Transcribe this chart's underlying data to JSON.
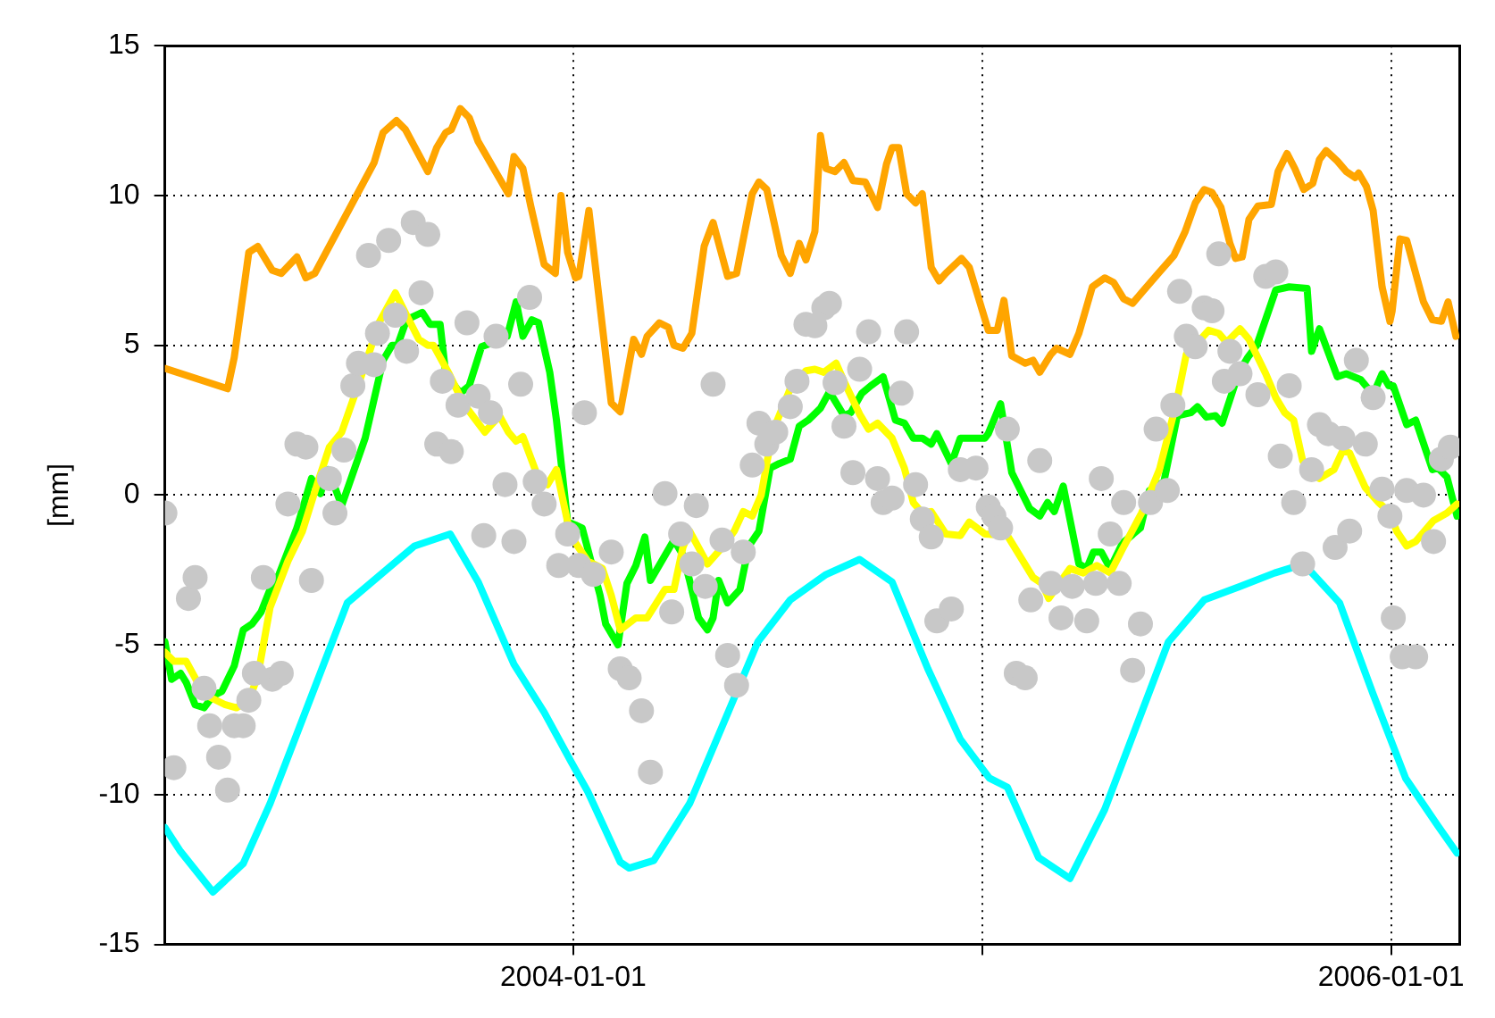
{
  "chart_data": {
    "type": "line",
    "ylabel": "[mm]",
    "xlim": [
      "2003-01-01",
      "2006-03-03"
    ],
    "ylim": [
      -15,
      15
    ],
    "xticks": [
      {
        "value": "2004-01-01",
        "label": "2004-01-01"
      },
      {
        "value": "2005-01-01",
        "label": null
      },
      {
        "value": "2006-01-01",
        "label": "2006-01-01"
      }
    ],
    "yticks": [
      -15,
      -10,
      -5,
      0,
      5,
      10,
      15
    ],
    "grid": true,
    "legend": false,
    "series": [
      {
        "type": "scatter",
        "marker": "circle",
        "color": "#c8c8c8",
        "x": [
          "2003-01-01",
          "2003-01-09",
          "2003-01-22",
          "2003-01-28",
          "2003-02-05",
          "2003-02-10",
          "2003-02-18",
          "2003-02-26",
          "2003-03-04",
          "2003-03-12",
          "2003-03-17",
          "2003-03-22",
          "2003-03-30",
          "2003-04-07",
          "2003-04-15",
          "2003-04-21",
          "2003-04-29",
          "2003-05-07",
          "2003-05-12",
          "2003-05-28",
          "2003-06-02",
          "2003-06-10",
          "2003-06-18",
          "2003-06-23",
          "2003-07-02",
          "2003-07-07",
          "2003-07-10",
          "2003-07-20",
          "2003-07-26",
          "2003-08-05",
          "2003-08-11",
          "2003-08-18",
          "2003-08-24",
          "2003-09-01",
          "2003-09-06",
          "2003-09-14",
          "2003-09-20",
          "2003-09-28",
          "2003-10-08",
          "2003-10-13",
          "2003-10-19",
          "2003-10-24",
          "2003-11-01",
          "2003-11-09",
          "2003-11-15",
          "2003-11-23",
          "2003-11-28",
          "2003-12-06",
          "2003-12-19",
          "2003-12-27",
          "2004-01-06",
          "2004-01-11",
          "2004-01-19",
          "2004-02-04",
          "2004-02-12",
          "2004-02-20",
          "2004-03-02",
          "2004-03-10",
          "2004-03-23",
          "2004-03-29",
          "2004-04-06",
          "2004-04-16",
          "2004-04-20",
          "2004-04-28",
          "2004-05-05",
          "2004-05-13",
          "2004-05-18",
          "2004-05-26",
          "2004-06-01",
          "2004-06-09",
          "2004-06-15",
          "2004-06-22",
          "2004-06-30",
          "2004-07-13",
          "2004-07-19",
          "2004-07-27",
          "2004-08-04",
          "2004-08-12",
          "2004-08-17",
          "2004-08-22",
          "2004-08-30",
          "2004-09-07",
          "2004-09-13",
          "2004-09-21",
          "2004-09-29",
          "2004-10-04",
          "2004-10-12",
          "2004-10-20",
          "2004-10-25",
          "2004-11-02",
          "2004-11-08",
          "2004-11-16",
          "2004-11-21",
          "2004-12-04",
          "2004-12-12",
          "2004-12-26",
          "2005-01-06",
          "2005-01-11",
          "2005-01-17",
          "2005-01-23",
          "2005-01-31",
          "2005-02-08",
          "2005-02-13",
          "2005-02-21",
          "2005-03-03",
          "2005-03-12",
          "2005-03-22",
          "2005-04-04",
          "2005-04-12",
          "2005-04-17",
          "2005-04-25",
          "2005-05-03",
          "2005-05-07",
          "2005-05-15",
          "2005-05-22",
          "2005-05-31",
          "2005-06-05",
          "2005-06-15",
          "2005-06-20",
          "2005-06-26",
          "2005-07-02",
          "2005-07-10",
          "2005-07-18",
          "2005-07-25",
          "2005-07-31",
          "2005-08-05",
          "2005-08-10",
          "2005-08-19",
          "2005-09-04",
          "2005-09-11",
          "2005-09-20",
          "2005-09-24",
          "2005-10-02",
          "2005-10-06",
          "2005-10-14",
          "2005-10-22",
          "2005-10-29",
          "2005-11-06",
          "2005-11-12",
          "2005-11-19",
          "2005-11-25",
          "2005-12-01",
          "2005-12-09",
          "2005-12-16",
          "2005-12-24",
          "2005-12-31",
          "2006-01-03",
          "2006-01-11",
          "2006-01-15",
          "2006-01-23",
          "2006-01-30",
          "2006-02-08",
          "2006-02-15",
          "2006-02-23"
        ],
        "values": [
          -0.6,
          -9.1,
          -3.45,
          -2.75,
          -6.45,
          -7.7,
          -8.75,
          -9.85,
          -7.7,
          -7.7,
          -6.85,
          -5.95,
          -2.75,
          -6.15,
          -5.95,
          -0.3,
          1.7,
          1.6,
          -2.85,
          0.55,
          -0.6,
          1.5,
          3.65,
          4.4,
          8.0,
          4.35,
          5.4,
          8.5,
          6.0,
          4.8,
          9.1,
          6.75,
          8.7,
          1.7,
          3.8,
          1.45,
          3.0,
          5.75,
          3.3,
          -1.35,
          2.75,
          5.3,
          0.35,
          -1.55,
          3.7,
          6.6,
          0.45,
          -0.3,
          -2.35,
          -1.3,
          -2.35,
          2.75,
          -2.65,
          -1.9,
          -5.8,
          -6.1,
          -7.2,
          -9.25,
          0.05,
          -3.9,
          -1.3,
          -2.3,
          -0.35,
          -3.05,
          3.7,
          -1.5,
          -5.35,
          -6.35,
          -1.9,
          1.0,
          2.4,
          1.7,
          2.1,
          2.95,
          3.8,
          5.7,
          5.65,
          6.25,
          6.4,
          3.75,
          2.3,
          0.75,
          4.2,
          5.45,
          0.55,
          -0.25,
          -0.1,
          3.4,
          5.45,
          0.35,
          -0.8,
          -1.4,
          -4.2,
          -3.8,
          0.85,
          0.9,
          -0.4,
          -0.7,
          -1.1,
          2.2,
          -5.95,
          -6.1,
          -3.5,
          1.15,
          -2.95,
          -4.1,
          -3.05,
          -4.2,
          -2.95,
          0.55,
          -1.3,
          -2.95,
          -0.25,
          -5.85,
          -4.3,
          -0.25,
          2.2,
          0.15,
          3.0,
          6.8,
          5.3,
          4.95,
          6.25,
          6.15,
          8.05,
          3.8,
          4.8,
          4.05,
          3.35,
          7.3,
          7.45,
          1.3,
          3.65,
          -0.25,
          -2.3,
          0.85,
          2.35,
          2.05,
          -1.75,
          1.9,
          -1.2,
          4.5,
          1.7,
          3.25,
          0.2,
          -0.7,
          -4.1,
          -5.4,
          0.15,
          -5.4,
          0.0,
          -1.55,
          1.2,
          1.6
        ]
      },
      {
        "marker": "none",
        "color": "#ffa500",
        "x": [
          "2003-01-01",
          "2003-02-26",
          "2003-03-04",
          "2003-03-17",
          "2003-03-25",
          "2003-04-07",
          "2003-04-15",
          "2003-04-29",
          "2003-05-07",
          "2003-05-15",
          "2003-07-07",
          "2003-07-15",
          "2003-07-27",
          "2003-08-04",
          "2003-08-24",
          "2003-09-01",
          "2003-09-09",
          "2003-09-14",
          "2003-09-22",
          "2003-09-30",
          "2003-10-08",
          "2003-11-04",
          "2003-11-09",
          "2003-11-17",
          "2003-11-24",
          "2003-12-06",
          "2003-12-16",
          "2003-12-21",
          "2003-12-27",
          "2004-01-03",
          "2004-01-06",
          "2004-01-15",
          "2004-02-04",
          "2004-02-12",
          "2004-02-24",
          "2004-03-02",
          "2004-03-07",
          "2004-03-18",
          "2004-03-26",
          "2004-03-31",
          "2004-04-08",
          "2004-04-16",
          "2004-04-27",
          "2004-05-05",
          "2004-05-18",
          "2004-05-26",
          "2004-06-09",
          "2004-06-15",
          "2004-06-22",
          "2004-07-05",
          "2004-07-13",
          "2004-07-21",
          "2004-07-27",
          "2004-08-04",
          "2004-08-09",
          "2004-08-14",
          "2004-08-22",
          "2004-08-30",
          "2004-09-07",
          "2004-09-18",
          "2004-09-29",
          "2004-10-07",
          "2004-10-12",
          "2004-10-18",
          "2004-10-25",
          "2004-11-02",
          "2004-11-08",
          "2004-11-16",
          "2004-11-23",
          "2004-11-29",
          "2004-12-13",
          "2004-12-20",
          "2005-01-06",
          "2005-01-14",
          "2005-01-20",
          "2005-01-27",
          "2005-02-08",
          "2005-02-15",
          "2005-02-21",
          "2005-03-03",
          "2005-03-08",
          "2005-03-20",
          "2005-03-28",
          "2005-04-09",
          "2005-04-20",
          "2005-04-28",
          "2005-05-07",
          "2005-05-15",
          "2005-05-23",
          "2005-06-07",
          "2005-06-21",
          "2005-07-01",
          "2005-07-10",
          "2005-07-18",
          "2005-07-25",
          "2005-08-02",
          "2005-08-10",
          "2005-08-15",
          "2005-08-21",
          "2005-08-27",
          "2005-09-04",
          "2005-09-16",
          "2005-09-22",
          "2005-09-30",
          "2005-10-07",
          "2005-10-15",
          "2005-10-23",
          "2005-10-29",
          "2005-11-04",
          "2005-11-14",
          "2005-11-22",
          "2005-11-30",
          "2005-12-03",
          "2005-12-10",
          "2005-12-16",
          "2005-12-24",
          "2005-12-31",
          "2006-01-02",
          "2006-01-09",
          "2006-01-15",
          "2006-01-30",
          "2006-02-07",
          "2006-02-15",
          "2006-02-21",
          "2006-02-28"
        ],
        "values": [
          4.23,
          3.55,
          4.6,
          8.1,
          8.3,
          7.5,
          7.4,
          7.95,
          7.25,
          7.4,
          11.1,
          12.1,
          12.5,
          12.2,
          10.8,
          11.6,
          12.1,
          12.2,
          12.9,
          12.6,
          11.8,
          10.06,
          11.3,
          10.9,
          9.65,
          7.7,
          7.4,
          10.0,
          8.1,
          7.25,
          7.3,
          9.5,
          3.07,
          2.78,
          5.2,
          4.7,
          5.3,
          5.75,
          5.6,
          5.0,
          4.9,
          5.4,
          8.3,
          9.1,
          7.3,
          7.4,
          10.06,
          10.45,
          10.2,
          8.0,
          7.4,
          8.4,
          7.85,
          8.8,
          12.0,
          10.9,
          10.8,
          11.1,
          10.5,
          10.45,
          9.6,
          11.05,
          11.6,
          11.6,
          10.06,
          9.75,
          10.06,
          7.6,
          7.15,
          7.4,
          7.9,
          7.6,
          5.5,
          5.5,
          6.5,
          4.65,
          4.4,
          4.5,
          4.1,
          4.7,
          4.9,
          4.7,
          5.4,
          6.95,
          7.25,
          7.1,
          6.55,
          6.4,
          6.75,
          7.4,
          8.0,
          8.8,
          9.75,
          10.2,
          10.1,
          9.6,
          8.4,
          7.9,
          7.95,
          9.2,
          9.65,
          9.7,
          10.8,
          11.4,
          10.9,
          10.2,
          10.4,
          11.2,
          11.5,
          11.15,
          10.8,
          10.6,
          10.75,
          10.3,
          9.5,
          6.95,
          5.8,
          6.15,
          8.55,
          8.5,
          6.45,
          5.85,
          5.8,
          6.45,
          5.3
        ]
      },
      {
        "marker": "none",
        "color": "#ffff00",
        "x": [
          "2003-01-01",
          "2003-01-09",
          "2003-01-20",
          "2003-02-05",
          "2003-02-24",
          "2003-03-06",
          "2003-03-17",
          "2003-03-25",
          "2003-04-05",
          "2003-04-21",
          "2003-05-04",
          "2003-05-17",
          "2003-05-28",
          "2003-06-08",
          "2003-06-24",
          "2003-07-12",
          "2003-07-26",
          "2003-08-03",
          "2003-08-16",
          "2003-08-24",
          "2003-08-29",
          "2003-09-12",
          "2003-09-25",
          "2003-10-03",
          "2003-10-14",
          "2003-10-27",
          "2003-11-04",
          "2003-11-11",
          "2003-11-17",
          "2003-12-01",
          "2003-12-09",
          "2003-12-17",
          "2003-12-27",
          "2004-01-03",
          "2004-01-14",
          "2004-01-27",
          "2004-02-04",
          "2004-02-12",
          "2004-02-26",
          "2004-03-07",
          "2004-03-23",
          "2004-03-31",
          "2004-04-08",
          "2004-04-14",
          "2004-04-30",
          "2004-05-13",
          "2004-05-24",
          "2004-06-01",
          "2004-06-09",
          "2004-06-17",
          "2004-06-27",
          "2004-07-13",
          "2004-07-27",
          "2004-08-04",
          "2004-08-12",
          "2004-08-23",
          "2004-08-30",
          "2004-09-13",
          "2004-09-21",
          "2004-09-29",
          "2004-10-12",
          "2004-10-23",
          "2004-10-31",
          "2004-11-08",
          "2004-11-16",
          "2004-11-29",
          "2004-12-12",
          "2004-12-20",
          "2005-01-03",
          "2005-01-23",
          "2005-02-15",
          "2005-02-23",
          "2005-03-01",
          "2005-03-20",
          "2005-04-01",
          "2005-04-13",
          "2005-04-25",
          "2005-05-06",
          "2005-05-23",
          "2005-06-08",
          "2005-06-23",
          "2005-07-02",
          "2005-07-10",
          "2005-07-22",
          "2005-07-31",
          "2005-08-07",
          "2005-08-19",
          "2005-08-27",
          "2005-09-11",
          "2005-09-20",
          "2005-09-28",
          "2005-10-06",
          "2005-10-14",
          "2005-10-21",
          "2005-10-29",
          "2005-11-11",
          "2005-11-19",
          "2005-11-25",
          "2005-12-01",
          "2005-12-09",
          "2005-12-21",
          "2005-12-31",
          "2006-01-06",
          "2006-01-15",
          "2006-01-23",
          "2006-01-31",
          "2006-02-08",
          "2006-02-20",
          "2006-03-01"
        ],
        "values": [
          -5.25,
          -5.55,
          -5.55,
          -6.65,
          -7.0,
          -7.1,
          -6.85,
          -6.05,
          -3.75,
          -2.2,
          -1.2,
          0.35,
          1.6,
          2.1,
          3.8,
          5.8,
          6.75,
          6.15,
          5.2,
          5.0,
          5.0,
          4.05,
          3.05,
          2.65,
          2.1,
          2.65,
          2.1,
          1.8,
          1.95,
          0.55,
          0.35,
          0.85,
          -0.9,
          -1.6,
          -2.2,
          -2.45,
          -3.35,
          -4.5,
          -4.1,
          -4.1,
          -3.15,
          -3.15,
          -1.75,
          -1.2,
          -2.3,
          -1.75,
          -1.2,
          -0.55,
          -0.7,
          0.0,
          2.1,
          3.55,
          4.15,
          4.2,
          4.1,
          4.4,
          3.8,
          2.7,
          2.2,
          2.4,
          1.9,
          0.9,
          -0.25,
          -0.6,
          -0.55,
          -1.3,
          -1.35,
          -0.9,
          -1.3,
          -1.35,
          -2.75,
          -2.95,
          -3.45,
          -2.45,
          -2.6,
          -2.35,
          -2.6,
          -1.8,
          -0.6,
          0.85,
          3.05,
          4.7,
          5.0,
          5.5,
          5.4,
          5.1,
          5.55,
          5.2,
          4.05,
          3.25,
          2.75,
          2.5,
          1.15,
          0.75,
          0.55,
          0.85,
          1.5,
          1.4,
          0.9,
          0.25,
          -0.25,
          -0.6,
          -1.2,
          -1.7,
          -1.55,
          -1.2,
          -0.85,
          -0.6,
          -0.3
        ]
      },
      {
        "marker": "none",
        "color": "#00ff00",
        "x": [
          "2003-01-01",
          "2003-01-07",
          "2003-01-15",
          "2003-01-20",
          "2003-01-28",
          "2003-02-05",
          "2003-02-13",
          "2003-02-21",
          "2003-03-04",
          "2003-03-12",
          "2003-03-20",
          "2003-03-28",
          "2003-04-05",
          "2003-04-13",
          "2003-04-29",
          "2003-05-12",
          "2003-05-20",
          "2003-05-27",
          "2003-06-08",
          "2003-06-29",
          "2003-07-15",
          "2003-07-23",
          "2003-07-28",
          "2003-08-05",
          "2003-08-19",
          "2003-08-26",
          "2003-09-04",
          "2003-09-09",
          "2003-09-22",
          "2003-09-30",
          "2003-10-11",
          "2003-10-18",
          "2003-10-27",
          "2003-11-03",
          "2003-11-11",
          "2003-11-17",
          "2003-11-25",
          "2003-12-01",
          "2003-12-11",
          "2003-12-17",
          "2003-12-27",
          "2004-01-03",
          "2004-01-09",
          "2004-01-25",
          "2004-01-30",
          "2004-02-10",
          "2004-02-18",
          "2004-02-26",
          "2004-03-05",
          "2004-03-10",
          "2004-03-31",
          "2004-04-08",
          "2004-04-14",
          "2004-04-22",
          "2004-04-30",
          "2004-05-05",
          "2004-05-10",
          "2004-05-18",
          "2004-05-29",
          "2004-06-06",
          "2004-06-15",
          "2004-06-25",
          "2004-07-03",
          "2004-07-13",
          "2004-07-21",
          "2004-07-29",
          "2004-08-09",
          "2004-08-17",
          "2004-08-30",
          "2004-09-05",
          "2004-09-15",
          "2004-09-23",
          "2004-10-04",
          "2004-10-15",
          "2004-10-23",
          "2004-10-31",
          "2004-11-08",
          "2004-11-16",
          "2004-11-21",
          "2004-12-04",
          "2004-12-12",
          "2004-12-26",
          "2005-01-03",
          "2005-01-06",
          "2005-01-17",
          "2005-01-27",
          "2005-02-12",
          "2005-02-21",
          "2005-02-28",
          "2005-03-06",
          "2005-03-14",
          "2005-03-28",
          "2005-04-04",
          "2005-04-10",
          "2005-04-17",
          "2005-04-25",
          "2005-05-06",
          "2005-05-22",
          "2005-05-30",
          "2005-06-12",
          "2005-06-24",
          "2005-07-06",
          "2005-07-12",
          "2005-07-20",
          "2005-07-28",
          "2005-08-03",
          "2005-08-18",
          "2005-08-26",
          "2005-09-03",
          "2005-09-20",
          "2005-10-02",
          "2005-10-18",
          "2005-10-22",
          "2005-10-29",
          "2005-11-14",
          "2005-11-22",
          "2005-12-05",
          "2005-12-16",
          "2005-12-24",
          "2005-12-30",
          "2006-01-03",
          "2006-01-15",
          "2006-01-23",
          "2006-02-07",
          "2006-02-12",
          "2006-02-20",
          "2006-03-01"
        ],
        "values": [
          -4.9,
          -6.15,
          -5.95,
          -6.25,
          -7.0,
          -7.1,
          -6.7,
          -6.55,
          -5.7,
          -4.5,
          -4.3,
          -3.9,
          -3.15,
          -2.65,
          -1.1,
          0.55,
          0.05,
          0.85,
          -0.35,
          1.9,
          4.5,
          5.0,
          5.0,
          5.85,
          6.1,
          5.7,
          5.7,
          4.05,
          3.4,
          3.65,
          4.95,
          5.05,
          5.3,
          5.3,
          6.45,
          5.3,
          5.85,
          5.75,
          4.1,
          2.5,
          -0.9,
          -1.0,
          -1.1,
          -3.35,
          -4.3,
          -5.0,
          -2.95,
          -2.35,
          -1.4,
          -2.85,
          -1.5,
          -2.0,
          -2.85,
          -4.1,
          -4.5,
          -4.1,
          -2.85,
          -3.6,
          -3.15,
          -1.7,
          -1.2,
          0.9,
          1.05,
          1.2,
          2.3,
          2.5,
          2.9,
          3.45,
          2.65,
          2.75,
          3.4,
          3.65,
          3.95,
          2.5,
          2.4,
          1.9,
          1.9,
          1.7,
          2.05,
          1.05,
          1.9,
          1.9,
          1.9,
          2.05,
          3.05,
          0.75,
          -0.45,
          -0.7,
          -0.25,
          -0.55,
          0.3,
          -2.3,
          -2.45,
          -1.9,
          -1.9,
          -2.45,
          -1.6,
          -1.1,
          0.15,
          0.45,
          2.65,
          2.75,
          2.95,
          2.6,
          2.65,
          2.4,
          4.1,
          4.6,
          5.0,
          6.85,
          6.95,
          6.9,
          4.8,
          5.55,
          3.95,
          4.05,
          3.85,
          3.35,
          4.05,
          3.65,
          3.65,
          2.35,
          2.5,
          0.85,
          0.9,
          0.6,
          -0.7
        ]
      },
      {
        "marker": "none",
        "color": "#00ffff",
        "x": [
          "2003-01-01",
          "2003-01-15",
          "2003-02-13",
          "2003-03-12",
          "2003-04-05",
          "2003-06-13",
          "2003-08-12",
          "2003-09-13",
          "2003-10-08",
          "2003-11-09",
          "2003-12-06",
          "2003-12-30",
          "2004-01-14",
          "2004-02-12",
          "2004-02-20",
          "2004-03-13",
          "2004-04-14",
          "2004-06-14",
          "2004-07-13",
          "2004-08-14",
          "2004-09-13",
          "2004-10-12",
          "2004-11-13",
          "2004-12-12",
          "2005-01-07",
          "2005-01-23",
          "2005-02-20",
          "2005-03-20",
          "2005-04-20",
          "2005-06-16",
          "2005-07-18",
          "2005-08-19",
          "2005-09-19",
          "2005-10-15",
          "2005-11-16",
          "2005-12-16",
          "2006-01-14",
          "2006-02-12",
          "2006-03-01"
        ],
        "values": [
          -11.1,
          -11.9,
          -13.25,
          -12.3,
          -10.3,
          -3.6,
          -1.7,
          -1.3,
          -2.9,
          -5.65,
          -7.25,
          -8.9,
          -9.9,
          -12.25,
          -12.45,
          -12.2,
          -10.3,
          -4.9,
          -3.5,
          -2.65,
          -2.15,
          -2.9,
          -5.8,
          -8.15,
          -9.45,
          -9.75,
          -12.1,
          -12.8,
          -10.5,
          -4.9,
          -3.5,
          -3.05,
          -2.6,
          -2.3,
          -3.6,
          -6.65,
          -9.45,
          -11.05,
          -11.95
        ]
      }
    ]
  }
}
